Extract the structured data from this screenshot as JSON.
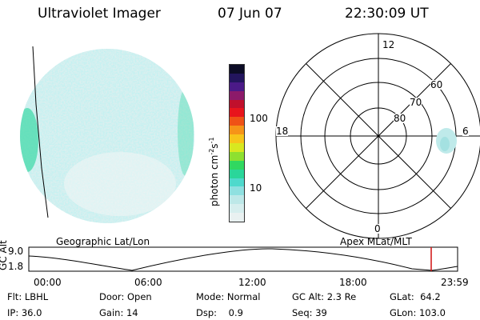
{
  "header": {
    "title": "Ultraviolet Imager",
    "date": "07 Jun 07",
    "time": "22:30:09 UT"
  },
  "colorbar": {
    "label": "photon cm",
    "label_sup1": "-2",
    "label_mid": "s",
    "label_sup2": "-1",
    "ticks": [
      "100",
      "10"
    ],
    "colors": [
      "#e9f1f1",
      "#d6eeee",
      "#bde8e8",
      "#8fe0e0",
      "#4fd9cc",
      "#2ad69a",
      "#30d860",
      "#8ee030",
      "#d8e820",
      "#f7c51a",
      "#f69418",
      "#ef5216",
      "#e8141c",
      "#c0102c",
      "#8c1a6a",
      "#4b1a88",
      "#23155e",
      "#0c0c26"
    ]
  },
  "geographic": {
    "label": "Geographic Lat/Lon",
    "disk_color": "#9adede",
    "aurora_color": "#30d7a0"
  },
  "polar": {
    "label": "Apex MLat/MLT",
    "mlt_labels": {
      "top": "12",
      "left": "18",
      "right": "6",
      "bottom": "0"
    },
    "lat_labels": [
      "60",
      "70",
      "80"
    ],
    "blob_color": "#bfeaea"
  },
  "altitude_plot": {
    "ylabel": "GC Alt",
    "yticks": [
      "9.0",
      "1.8"
    ],
    "xticks": [
      "00:00",
      "06:00",
      "12:00",
      "18:00",
      "23:59"
    ],
    "marker_color": "#d01010"
  },
  "info": {
    "flt": {
      "label": "Flt:",
      "value": "LBHL"
    },
    "ip": {
      "label": "IP:",
      "value": "36.0"
    },
    "door": {
      "label": "Door:",
      "value": "Open"
    },
    "gain": {
      "label": "Gain:",
      "value": "14"
    },
    "mode": {
      "label": "Mode:",
      "value": "Normal"
    },
    "dsp": {
      "label": "Dsp:",
      "value": "0.9"
    },
    "gcalt": {
      "label": "GC Alt:",
      "value": "2.3 Re"
    },
    "seq": {
      "label": "Seq:",
      "value": "39"
    },
    "glat": {
      "label": "GLat:",
      "value": "64.2"
    },
    "glon": {
      "label": "GLon:",
      "value": "103.0"
    }
  }
}
